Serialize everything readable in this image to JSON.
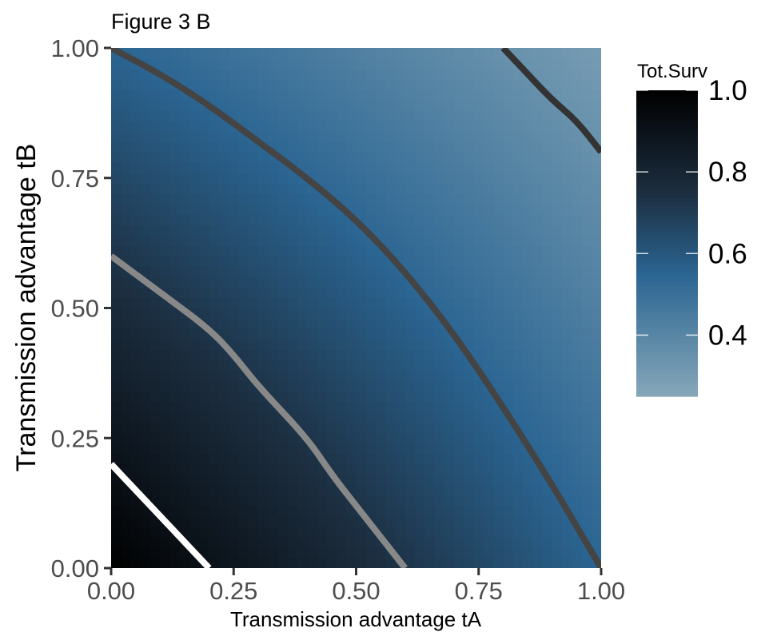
{
  "chart_data": {
    "type": "heatmap",
    "title": "Figure 3 B",
    "xlabel": "Transmission advantage tA",
    "ylabel": "Transmission advantage tB",
    "xlim": [
      0,
      1
    ],
    "ylim": [
      0,
      1
    ],
    "xticks": [
      0,
      0.25,
      0.5,
      0.75,
      1
    ],
    "xtick_labels": [
      "0.00",
      "0.25",
      "0.50",
      "0.75",
      "1.00"
    ],
    "yticks": [
      0,
      0.25,
      0.5,
      0.75,
      1
    ],
    "ytick_labels": [
      "0.00",
      "0.25",
      "0.50",
      "0.75",
      "1.00"
    ],
    "z_description": "Tot.Surv at corners",
    "z_corners": {
      "x0_y0": 1.0,
      "x1_y0": 0.55,
      "x0_y1": 0.55,
      "x1_y1": 0.3
    },
    "legend": {
      "title": "Tot.Surv",
      "position": "right",
      "range": [
        0.25,
        1.0
      ],
      "ticks": [
        1.0,
        0.8,
        0.6,
        0.4
      ],
      "tick_labels": [
        "1.0",
        "0.8",
        "0.6",
        "0.4"
      ],
      "color_stops": [
        {
          "value": 1.0,
          "color": "#000000"
        },
        {
          "value": 0.75,
          "color": "#1c2e40"
        },
        {
          "value": 0.55,
          "color": "#2b6592"
        },
        {
          "value": 0.25,
          "color": "#86a7b9"
        }
      ]
    },
    "contours": [
      {
        "color": "#ffffff",
        "points": [
          [
            0,
            0.2
          ],
          [
            0.05,
            0.15
          ],
          [
            0.1,
            0.1
          ],
          [
            0.15,
            0.05
          ],
          [
            0.2,
            0.0
          ]
        ]
      },
      {
        "color": "#888888",
        "points": [
          [
            0,
            0.6
          ],
          [
            0.1,
            0.53
          ],
          [
            0.2,
            0.46
          ],
          [
            0.25,
            0.41
          ],
          [
            0.3,
            0.35
          ],
          [
            0.4,
            0.25
          ],
          [
            0.45,
            0.18
          ],
          [
            0.5,
            0.12
          ],
          [
            0.55,
            0.06
          ],
          [
            0.6,
            0.0
          ]
        ]
      },
      {
        "color": "#444444",
        "points": [
          [
            0,
            1.0
          ],
          [
            0.1,
            0.95
          ],
          [
            0.2,
            0.89
          ],
          [
            0.3,
            0.82
          ],
          [
            0.4,
            0.75
          ],
          [
            0.5,
            0.67
          ],
          [
            0.6,
            0.57
          ],
          [
            0.7,
            0.45
          ],
          [
            0.8,
            0.31
          ],
          [
            0.9,
            0.16
          ],
          [
            0.95,
            0.08
          ],
          [
            1.0,
            0.0
          ]
        ]
      },
      {
        "color": "#333333",
        "points": [
          [
            0.8,
            1.0
          ],
          [
            0.85,
            0.95
          ],
          [
            0.9,
            0.9
          ],
          [
            0.95,
            0.86
          ],
          [
            1.0,
            0.8
          ]
        ]
      }
    ],
    "grid": false
  }
}
